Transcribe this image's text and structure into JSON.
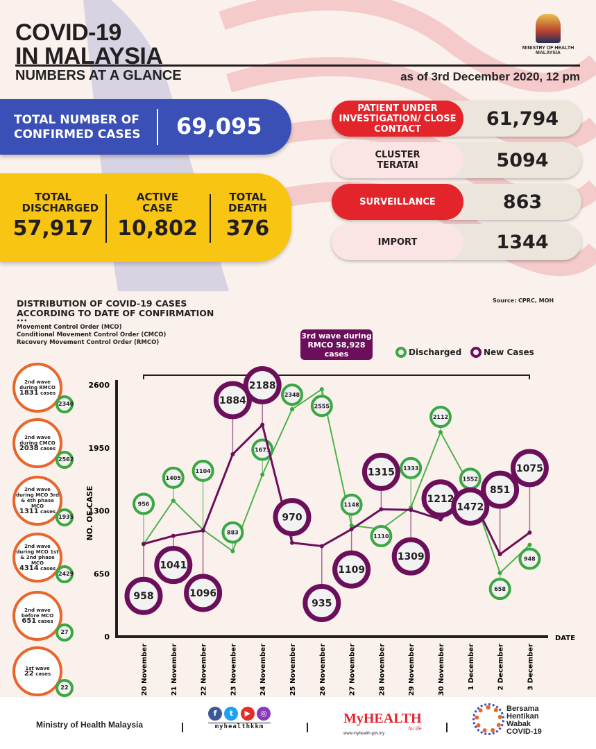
{
  "header": {
    "title_line1": "COVID-19",
    "title_line2": "IN MALAYSIA",
    "subtitle": "NUMBERS AT A GLANCE",
    "as_of": "as of 3rd December 2020, 12 pm",
    "ministry": "MINISTRY OF HEALTH MALAYSIA"
  },
  "totals": {
    "confirmed_label": "TOTAL NUMBER OF CONFIRMED CASES",
    "confirmed": "69,095",
    "discharged_label": "TOTAL DISCHARGED",
    "discharged": "57,917",
    "active_label": "ACTIVE CASE",
    "active": "10,802",
    "death_label": "TOTAL DEATH",
    "death": "376"
  },
  "categories": [
    {
      "label": "PATIENT UNDER INVESTIGATION/ CLOSE CONTACT",
      "value": "61,794"
    },
    {
      "label": "CLUSTER TERATAI",
      "value": "5094"
    },
    {
      "label": "SURVEILLANCE",
      "value": "863"
    },
    {
      "label": "IMPORT",
      "value": "1344"
    }
  ],
  "colors": {
    "blue": "#3a50b6",
    "yellow": "#f7c512",
    "red": "#e3242b",
    "purple": "#6b0f5a",
    "green": "#3aa742",
    "orange": "#e8662c"
  },
  "section": {
    "title": "DISTRIBUTION OF COVID-19 CASES ACCORDING TO DATE OF CONFIRMATION",
    "dots": "•••",
    "defs": [
      "Movement Control Order (MCO)",
      "Conditional Movement Control Order (CMCO)",
      "Recovery Movement Control Order (RMCO)"
    ],
    "source": "Source: CPRC, MOH",
    "wave3": "3rd wave during RMCO 58,928 cases"
  },
  "waves": [
    {
      "l1": "2nd wave",
      "l2": "during RMCO",
      "cases": "1831",
      "unit": "cases",
      "discharged": "2340"
    },
    {
      "l1": "2nd wave",
      "l2": "during CMCO",
      "cases": "2038",
      "unit": "cases",
      "discharged": "2562"
    },
    {
      "l1": "2nd wave",
      "l2": "during MCO 3rd & 4th phase MCO",
      "cases": "1311",
      "unit": "cases",
      "discharged": "1935"
    },
    {
      "l1": "2nd wave",
      "l2": "during MCO 1st & 2nd phase MCO",
      "cases": "4314",
      "unit": "cases",
      "discharged": "2429"
    },
    {
      "l1": "2nd wave",
      "l2": "before MCO",
      "cases": "651",
      "unit": "cases",
      "discharged": "27"
    },
    {
      "l1": "1st wave",
      "l2": "",
      "cases": "22",
      "unit": "cases",
      "discharged": "22"
    }
  ],
  "chart_data": {
    "type": "line",
    "xlabel": "DATE",
    "ylabel": "NO. OF CASE",
    "ylim": [
      0,
      2600
    ],
    "yticks": [
      "0",
      "650",
      "1300",
      "1950",
      "2600"
    ],
    "categories": [
      "20 November",
      "21 November",
      "22 November",
      "23 November",
      "24 November",
      "25 November",
      "26 November",
      "27 November",
      "28 November",
      "29 November",
      "30 November",
      "1 December",
      "2 December",
      "3 December"
    ],
    "series": [
      {
        "name": "Discharged",
        "values": [
          956,
          1405,
          1104,
          883,
          1673,
          2348,
          2555,
          1148,
          1110,
          1333,
          2112,
          1552,
          658,
          948
        ]
      },
      {
        "name": "New Cases",
        "values": [
          958,
          1041,
          1096,
          1884,
          2188,
          970,
          935,
          1109,
          1315,
          1309,
          1212,
          1472,
          851,
          1075
        ]
      }
    ]
  },
  "footer": {
    "ministry": "Ministry of Health Malaysia",
    "social": "myhealthkkm",
    "myhealth": "MyHEALTH",
    "tagline": "for life",
    "url": "www.myhealth.gov.my",
    "campaign": "Bersama Hentikan Wabak COVID-19"
  }
}
